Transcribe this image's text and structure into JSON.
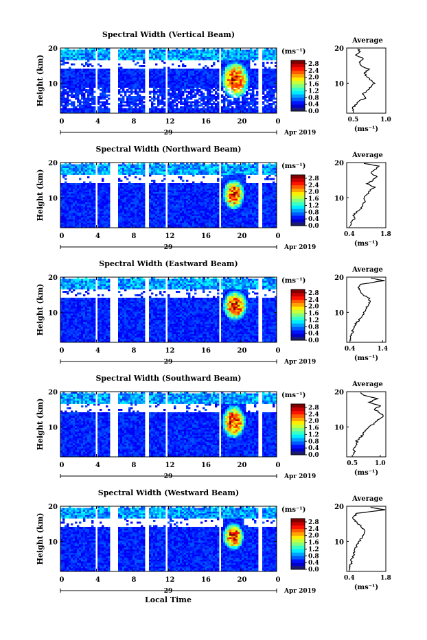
{
  "figure": {
    "xaxis_label": "Local Time",
    "date_label": "Apr 2019",
    "day_label": "29",
    "cbar_unit": "(ms⁻¹)",
    "avg_title": "Average",
    "avg_unit": "(ms⁻¹)"
  },
  "chart_data": [
    {
      "type": "heatmap",
      "title": "Spectral Width (Vertical Beam)",
      "ylabel": "Height (km)",
      "xlabel": "Local Time",
      "x_ticks": [
        "0",
        "4",
        "8",
        "12",
        "16",
        "20",
        "0"
      ],
      "xlim": [
        0,
        24
      ],
      "ylim": [
        1.5,
        20
      ],
      "y_ticks": [
        "10",
        "20"
      ],
      "colorbar": {
        "ticks": [
          "0.0",
          "0.4",
          "0.8",
          "1.2",
          "1.6",
          "2.0",
          "2.4",
          "2.8"
        ],
        "range": [
          0,
          3.0
        ]
      },
      "data_gaps_hours": [
        [
          3.8,
          4.2
        ],
        [
          5.6,
          6.3
        ],
        [
          9.4,
          9.8
        ],
        [
          11.6,
          11.9
        ],
        [
          17.6,
          17.9
        ],
        [
          21.9,
          22.3
        ]
      ],
      "enhanced_region": {
        "x": [
          17.8,
          21.0
        ],
        "y": [
          7,
          15
        ],
        "max_value": 3.0
      },
      "average_profile": {
        "title": "Average",
        "xlabel": "(ms⁻¹)",
        "x_ticks": [
          "0.5",
          "1.0"
        ],
        "xlim": [
          0.4,
          1.0
        ],
        "y_ticks": [
          "10",
          "20"
        ],
        "height_km": [
          2,
          3,
          4,
          5,
          6,
          7,
          8,
          9,
          10,
          11,
          12,
          13,
          14,
          15,
          16,
          17,
          18,
          19,
          20
        ],
        "values": [
          0.5,
          0.48,
          0.55,
          0.6,
          0.7,
          0.65,
          0.72,
          0.78,
          0.82,
          0.76,
          0.7,
          0.68,
          0.74,
          0.62,
          0.58,
          0.66,
          0.55,
          0.6,
          0.56
        ]
      }
    },
    {
      "type": "heatmap",
      "title": "Spectral Width (Northward Beam)",
      "ylabel": "Height (km)",
      "xlabel": "Local Time",
      "x_ticks": [
        "0",
        "4",
        "8",
        "12",
        "16",
        "20",
        "0"
      ],
      "xlim": [
        0,
        24
      ],
      "ylim": [
        1.5,
        20
      ],
      "y_ticks": [
        "10",
        "20"
      ],
      "colorbar": {
        "ticks": [
          "0.0",
          "0.4",
          "0.8",
          "1.2",
          "1.6",
          "2.0",
          "2.4",
          "2.8"
        ],
        "range": [
          0,
          3.0
        ]
      },
      "data_gaps_hours": [
        [
          3.8,
          4.2
        ],
        [
          5.6,
          6.3
        ],
        [
          9.4,
          9.8
        ],
        [
          11.6,
          11.9
        ],
        [
          17.6,
          17.9
        ],
        [
          21.9,
          22.3
        ]
      ],
      "enhanced_region": {
        "x": [
          18.0,
          20.5
        ],
        "y": [
          8,
          14
        ],
        "max_value": 3.0
      },
      "average_profile": {
        "title": "Average",
        "xlabel": "(ms⁻¹)",
        "x_ticks": [
          "0.4",
          "1.8"
        ],
        "xlim": [
          0.3,
          1.8
        ],
        "y_ticks": [
          "10",
          "20"
        ],
        "height_km": [
          2,
          3,
          4,
          5,
          6,
          7,
          8,
          9,
          10,
          11,
          12,
          13,
          14,
          15,
          16,
          17,
          18,
          19,
          20
        ],
        "values": [
          0.45,
          0.5,
          0.6,
          0.55,
          0.7,
          0.85,
          0.9,
          1.0,
          0.95,
          1.1,
          1.2,
          1.35,
          1.1,
          1.3,
          1.5,
          1.2,
          1.4,
          1.5,
          0.8
        ]
      }
    },
    {
      "type": "heatmap",
      "title": "Spectral Width (Eastward Beam)",
      "ylabel": "Height (km)",
      "xlabel": "Local Time",
      "x_ticks": [
        "0",
        "4",
        "8",
        "12",
        "16",
        "20",
        "0"
      ],
      "xlim": [
        0,
        24
      ],
      "ylim": [
        1.5,
        20
      ],
      "y_ticks": [
        "10",
        "20"
      ],
      "colorbar": {
        "ticks": [
          "0.0",
          "0.4",
          "0.8",
          "1.2",
          "1.6",
          "2.0",
          "2.4",
          "2.8"
        ],
        "range": [
          0,
          3.0
        ]
      },
      "data_gaps_hours": [
        [
          3.8,
          4.2
        ],
        [
          5.6,
          6.3
        ],
        [
          9.4,
          9.8
        ],
        [
          11.6,
          11.9
        ],
        [
          17.6,
          17.9
        ],
        [
          21.9,
          22.3
        ]
      ],
      "enhanced_region": {
        "x": [
          18.0,
          20.8
        ],
        "y": [
          9,
          15
        ],
        "max_value": 3.0
      },
      "average_profile": {
        "title": "Average",
        "xlabel": "(ms⁻¹)",
        "x_ticks": [
          "0.4",
          "1.4"
        ],
        "xlim": [
          0.3,
          1.5
        ],
        "y_ticks": [
          "10",
          "20"
        ],
        "height_km": [
          2,
          3,
          4,
          5,
          6,
          7,
          8,
          9,
          10,
          11,
          12,
          13,
          14,
          15,
          16,
          17,
          18,
          19,
          20
        ],
        "values": [
          0.4,
          0.42,
          0.45,
          0.5,
          0.55,
          0.6,
          0.7,
          0.78,
          0.82,
          0.88,
          0.95,
          1.0,
          0.98,
          0.8,
          0.7,
          0.65,
          0.75,
          1.45,
          0.9
        ]
      }
    },
    {
      "type": "heatmap",
      "title": "Spectral Width (Southward Beam)",
      "ylabel": "Height (km)",
      "xlabel": "Local Time",
      "x_ticks": [
        "0",
        "4",
        "8",
        "12",
        "16",
        "20",
        "0"
      ],
      "xlim": [
        0,
        24
      ],
      "ylim": [
        1.5,
        20
      ],
      "y_ticks": [
        "10",
        "20"
      ],
      "colorbar": {
        "ticks": [
          "0.0",
          "0.4",
          "0.8",
          "1.2",
          "1.6",
          "2.0",
          "2.4",
          "2.8"
        ],
        "range": [
          0,
          3.0
        ]
      },
      "data_gaps_hours": [
        [
          3.8,
          4.2
        ],
        [
          5.6,
          6.3
        ],
        [
          9.4,
          9.8
        ],
        [
          11.6,
          11.9
        ],
        [
          17.6,
          17.9
        ],
        [
          21.9,
          22.3
        ]
      ],
      "enhanced_region": {
        "x": [
          17.9,
          20.6
        ],
        "y": [
          8,
          15
        ],
        "max_value": 3.0
      },
      "average_profile": {
        "title": "Average",
        "xlabel": "(ms⁻¹)",
        "x_ticks": [
          "0.5",
          "1.0"
        ],
        "xlim": [
          0.4,
          1.1
        ],
        "y_ticks": [
          "10",
          "20"
        ],
        "height_km": [
          2,
          3,
          4,
          5,
          6,
          7,
          8,
          9,
          10,
          11,
          12,
          13,
          14,
          15,
          16,
          17,
          18,
          19,
          20
        ],
        "values": [
          0.5,
          0.55,
          0.52,
          0.6,
          0.58,
          0.65,
          0.7,
          0.72,
          0.8,
          0.9,
          0.95,
          1.05,
          1.0,
          0.9,
          1.0,
          0.8,
          0.95,
          0.7,
          0.65
        ]
      }
    },
    {
      "type": "heatmap",
      "title": "Spectral Width (Westward Beam)",
      "ylabel": "Height (km)",
      "xlabel": "Local Time",
      "x_ticks": [
        "0",
        "4",
        "8",
        "12",
        "16",
        "20",
        "0"
      ],
      "xlim": [
        0,
        24
      ],
      "ylim": [
        1.5,
        20
      ],
      "y_ticks": [
        "10",
        "20"
      ],
      "colorbar": {
        "ticks": [
          "0.0",
          "0.4",
          "0.8",
          "1.2",
          "1.6",
          "2.0",
          "2.4",
          "2.8"
        ],
        "range": [
          0,
          3.0
        ]
      },
      "data_gaps_hours": [
        [
          3.8,
          4.2
        ],
        [
          5.6,
          6.3
        ],
        [
          9.4,
          9.8
        ],
        [
          11.6,
          11.9
        ],
        [
          17.6,
          17.9
        ],
        [
          21.9,
          22.3
        ]
      ],
      "enhanced_region": {
        "x": [
          18.0,
          20.4
        ],
        "y": [
          9,
          14
        ],
        "max_value": 3.0
      },
      "average_profile": {
        "title": "Average",
        "xlabel": "(ms⁻¹)",
        "x_ticks": [
          "0.4",
          "1.8"
        ],
        "xlim": [
          0.3,
          1.8
        ],
        "y_ticks": [
          "10",
          "20"
        ],
        "height_km": [
          2,
          3,
          4,
          5,
          6,
          7,
          8,
          9,
          10,
          11,
          12,
          13,
          14,
          15,
          16,
          17,
          18,
          19,
          20
        ],
        "values": [
          0.4,
          0.42,
          0.5,
          0.48,
          0.55,
          0.6,
          0.65,
          0.72,
          0.8,
          0.88,
          0.92,
          1.0,
          0.9,
          0.75,
          0.6,
          0.55,
          0.7,
          1.75,
          1.0
        ]
      }
    }
  ]
}
